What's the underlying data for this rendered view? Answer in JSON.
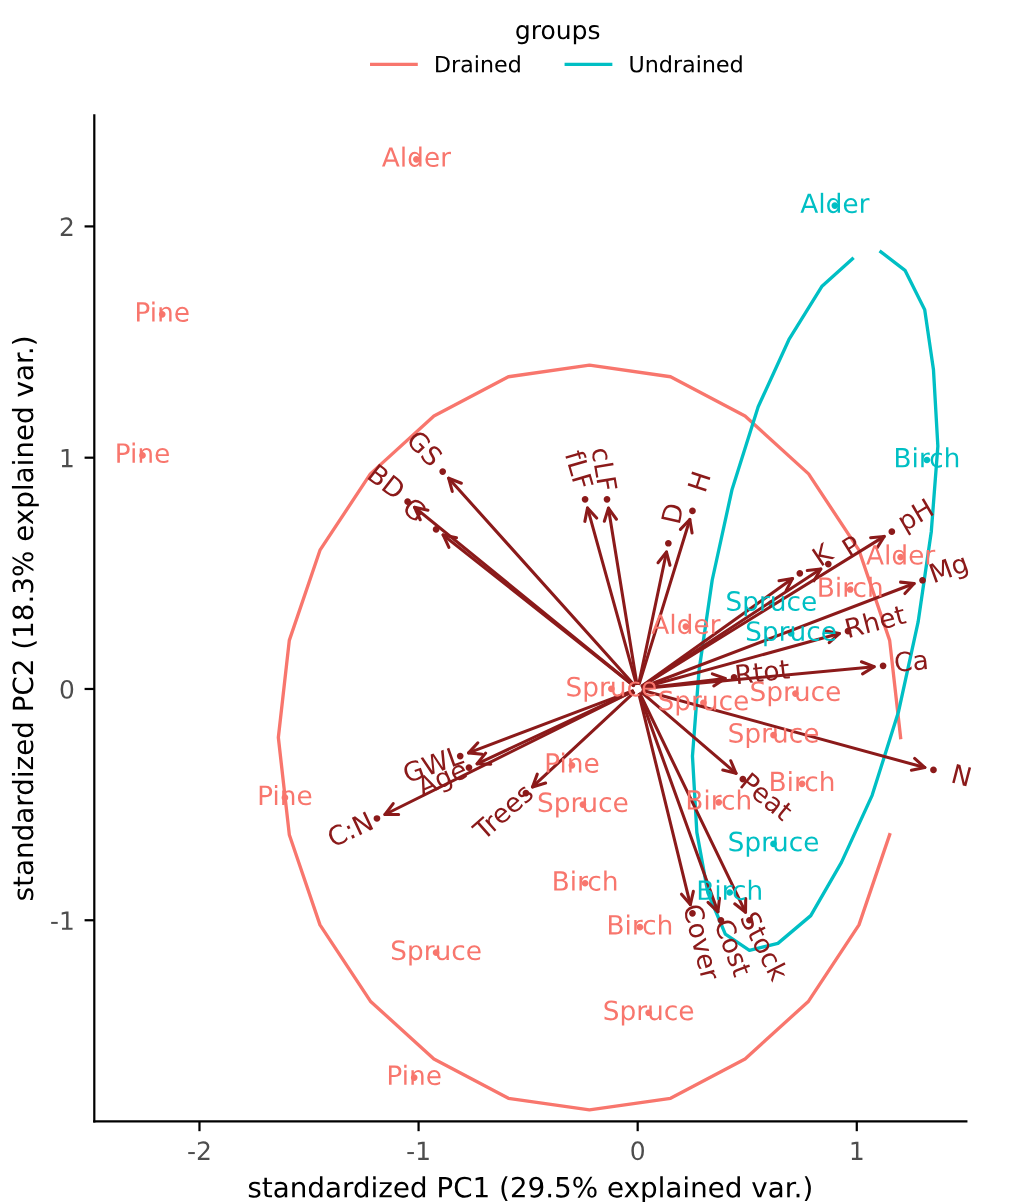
{
  "chart_data": {
    "type": "scatter",
    "xlabel": "standardized PC1 (29.5% explained var.)",
    "ylabel": "standardized PC2 (18.3% explained var.)",
    "legend_title": "groups",
    "legend": "top",
    "grid": false,
    "xlim": [
      -2.48,
      1.5
    ],
    "ylim": [
      -1.87,
      2.48
    ],
    "xticks": [
      -2,
      -1,
      0,
      1
    ],
    "yticks": [
      -1,
      0,
      1,
      2
    ],
    "series": [
      {
        "type": "line",
        "color": "#f8766d",
        "x": [
          1.2,
          1.15,
          1.01,
          0.78,
          0.49,
          0.15,
          -0.22,
          -0.59,
          -0.93,
          -1.22,
          -1.45,
          -1.59,
          -1.64,
          -1.59,
          -1.45,
          -1.22,
          -0.93,
          -0.59,
          -0.22,
          0.15,
          0.49,
          0.78,
          1.01,
          1.15
        ],
        "values": [
          -0.21,
          0.21,
          0.6,
          0.93,
          1.18,
          1.35,
          1.4,
          1.35,
          1.18,
          0.93,
          0.6,
          0.21,
          -0.21,
          -0.63,
          -1.02,
          -1.35,
          -1.6,
          -1.77,
          -1.82,
          -1.77,
          -1.6,
          -1.35,
          -1.02,
          -0.63
        ]
      },
      {
        "type": "line",
        "color": "#00bfc4",
        "x": [
          1.11,
          1.22,
          1.31,
          1.35,
          1.37,
          1.34,
          1.28,
          1.19,
          1.07,
          0.93,
          0.79,
          0.64,
          0.51,
          0.4,
          0.32,
          0.27,
          0.25,
          0.28,
          0.34,
          0.43,
          0.55,
          0.69,
          0.84,
          0.98
        ],
        "values": [
          1.89,
          1.81,
          1.64,
          1.38,
          1.05,
          0.68,
          0.29,
          -0.1,
          -0.46,
          -0.75,
          -0.98,
          -1.1,
          -1.13,
          -1.06,
          -0.88,
          -0.62,
          -0.29,
          0.08,
          0.47,
          0.86,
          1.22,
          1.51,
          1.74,
          1.86
        ]
      },
      {
        "name": "Drained",
        "color": "#f8766d",
        "x": [
          -1.01,
          -2.17,
          -2.26,
          -1.61,
          -0.92,
          -1.02,
          -0.3,
          -0.25,
          -0.24,
          0.01,
          0.05,
          0.37,
          0.75,
          -0.12,
          0.3,
          0.62,
          0.72,
          0.22,
          0.97,
          1.2
        ],
        "values": [
          2.29,
          1.62,
          1.01,
          -0.47,
          -1.14,
          -1.68,
          -0.33,
          -0.5,
          -0.84,
          -1.03,
          -1.4,
          -0.49,
          -0.41,
          0.0,
          -0.06,
          -0.2,
          -0.02,
          0.27,
          0.43,
          0.57
        ],
        "value_labels": [
          "Alder",
          "Pine",
          "Pine",
          "Pine",
          "Spruce",
          "Pine",
          "Pine",
          "Spruce",
          "Birch",
          "Birch",
          "Spruce",
          "Birch",
          "Birch",
          "Spruce",
          "Spruce",
          "Spruce",
          "Spruce",
          "Alder",
          "Birch",
          "Alder"
        ]
      },
      {
        "name": "Undrained",
        "color": "#00bfc4",
        "x": [
          0.9,
          1.32,
          0.61,
          0.7,
          0.62,
          0.42
        ],
        "values": [
          2.09,
          0.99,
          0.37,
          0.24,
          -0.67,
          -0.88
        ],
        "value_labels": [
          "Alder",
          "Birch",
          "Spruce",
          "Spruce",
          "Spruce",
          "Birch"
        ]
      },
      {
        "type": "lollipop",
        "color": "#8b1a1a",
        "x": [
          -0.89,
          -1.05,
          -0.92,
          -0.14,
          -0.24,
          0.14,
          0.25,
          0.74,
          0.87,
          1.16,
          1.3,
          0.96,
          0.44,
          1.12,
          1.35,
          0.48,
          0.25,
          0.38,
          0.51,
          -0.81,
          -0.77,
          -1.19,
          -0.51
        ],
        "values": [
          0.94,
          0.81,
          0.69,
          0.82,
          0.82,
          0.63,
          0.77,
          0.5,
          0.54,
          0.68,
          0.47,
          0.25,
          0.05,
          0.1,
          -0.35,
          -0.39,
          -0.97,
          -1.0,
          -1.0,
          -0.29,
          -0.34,
          -0.56,
          -0.45
        ],
        "value_labels": [
          "GS",
          "BD",
          "G",
          "cLF",
          "fLF",
          "D",
          "H",
          "K",
          "P",
          "pH",
          "Mg",
          "Rhet",
          "Rtot",
          "Ca",
          "N",
          "Peat",
          "Cover",
          "Cost",
          "Stock",
          "GWL",
          "Age",
          "C:N",
          "Trees"
        ]
      }
    ]
  }
}
